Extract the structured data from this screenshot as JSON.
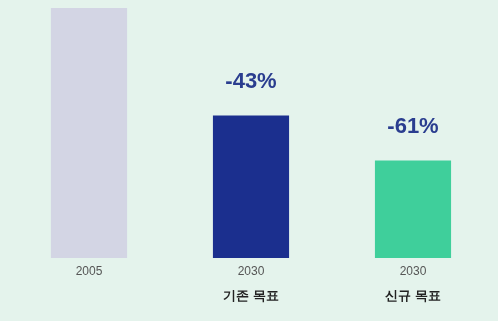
{
  "chart_data": {
    "type": "bar",
    "categories": [
      "2005",
      "2030 기존 목표",
      "2030 신규 목표"
    ],
    "values": [
      100,
      57,
      39
    ],
    "colors": [
      "#d3d5e4",
      "#1b2f8e",
      "#3fcf9b"
    ],
    "ylim": [
      0,
      100
    ],
    "grid": false,
    "tick_labels": false,
    "annotations": [
      {
        "category": "2030 기존 목표",
        "text": "-43%"
      },
      {
        "category": "2030 신규 목표",
        "text": "-61%"
      }
    ]
  }
}
